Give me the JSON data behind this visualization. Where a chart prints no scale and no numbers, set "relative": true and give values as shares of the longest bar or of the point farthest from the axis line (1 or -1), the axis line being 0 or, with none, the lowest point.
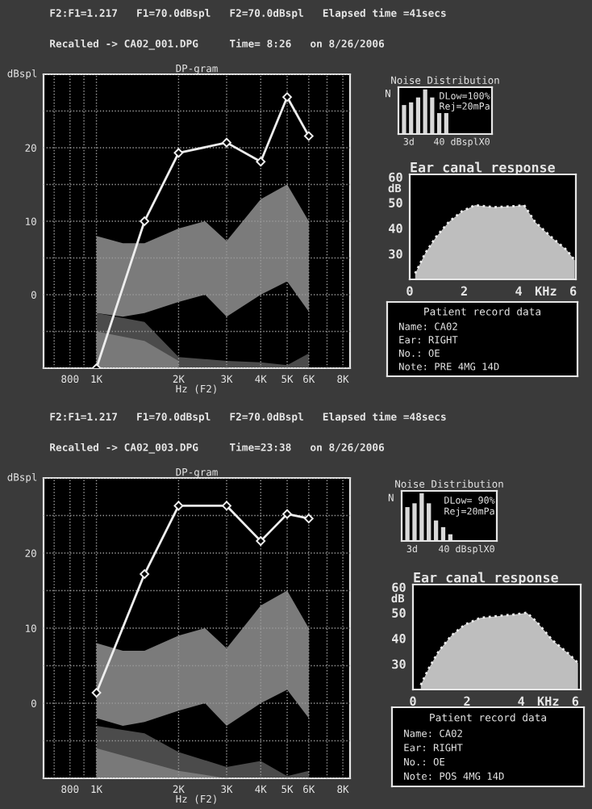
{
  "chart_data": [
    {
      "type": "line",
      "title": "DP-gram",
      "xlabel": "Hz (F2)",
      "ylabel": "dBspl",
      "log": "x",
      "grid": true,
      "annotations": [
        "F2:F1=1.217   F1=70.0dBspl   F2=70.0dBspl   Elapsed time =41secs",
        "Recalled -> CA02_001.DPG     Time= 8:26   on 8/26/2006"
      ],
      "xlim": [
        640,
        8500
      ],
      "xticks": [
        {
          "value": 700,
          "label": null
        },
        800,
        {
          "value": 900,
          "label": null
        },
        {
          "value": 1000,
          "label": "1K"
        },
        {
          "value": 2000,
          "label": "2K"
        },
        {
          "value": 3000,
          "label": "3K"
        },
        {
          "value": 4000,
          "label": "4K"
        },
        {
          "value": 5000,
          "label": "5K"
        },
        {
          "value": 6000,
          "label": "6K"
        },
        {
          "value": 7000,
          "label": null
        },
        {
          "value": 8000,
          "label": "8K"
        }
      ],
      "ylim": [
        -10,
        30
      ],
      "yticks": [
        {
          "value": -10,
          "label": null
        },
        {
          "value": -5,
          "label": null
        },
        0,
        {
          "value": 5,
          "label": null
        },
        10,
        {
          "value": 15,
          "label": null
        },
        20,
        {
          "value": 25,
          "label": null
        },
        {
          "value": 30,
          "label": null
        }
      ],
      "series": [
        {
          "type": "line",
          "color": "#9a9a9a",
          "x": [
            1000,
            1250,
            1500,
            2000,
            2500,
            3000,
            4000,
            5000,
            6000
          ],
          "values": [
            null,
            null,
            null,
            null,
            null,
            null,
            null,
            null,
            null
          ],
          "upper": [
            8,
            7,
            7,
            9,
            10,
            7.3,
            13,
            15,
            10
          ],
          "lower": [
            -2.5,
            -3,
            -2.5,
            -1,
            0,
            -3,
            0,
            1.8,
            -2.3
          ]
        },
        {
          "type": "line",
          "color": "#5e5e5e",
          "x": [
            1000,
            1500,
            2000,
            3000,
            4000,
            5000,
            6000
          ],
          "values": [
            null,
            null,
            null,
            null,
            null,
            null,
            null
          ],
          "upper": [
            -2.5,
            -3.7,
            -8.5,
            -9,
            -9.2,
            -9.6,
            -8
          ],
          "lower": [
            -10,
            -10,
            -10,
            -10,
            -10,
            -10,
            -10
          ]
        },
        {
          "type": "line",
          "color": "#858585",
          "x": [
            1000,
            1500,
            2000
          ],
          "values": [
            null,
            null,
            null
          ],
          "upper": [
            -5,
            -6.3,
            -9
          ],
          "lower": [
            -10,
            -10,
            -10
          ]
        },
        {
          "type": "line",
          "color": "#eeeeee",
          "marker": "diamond",
          "x": [
            1000,
            1500,
            2000,
            3000,
            4000,
            5000,
            6000
          ],
          "values": [
            -10,
            10,
            19.3,
            20.7,
            18.1,
            26.9,
            21.6
          ]
        }
      ]
    },
    {
      "type": "bar",
      "title": "Noise Distribution",
      "ylabel": "N",
      "relative": true,
      "tick_labels": false,
      "color": "#d8d8d8",
      "annotations": [
        "DLow=100%",
        "Rej=20mPa",
        "3d",
        "40 dBsplX0"
      ],
      "categories": [
        null,
        null,
        null,
        null,
        null,
        null,
        null
      ],
      "values": [
        0.65,
        0.71,
        0.82,
        1.0,
        0.82,
        0.47,
        0.47
      ]
    },
    {
      "type": "line",
      "title": "Ear canal response",
      "ylabel": "dB",
      "xlim": [
        0,
        6.1
      ],
      "xticks": [
        0,
        2,
        4,
        {
          "value": 5,
          "label": "KHz"
        },
        6
      ],
      "ylim": [
        20,
        61
      ],
      "yticks": [
        30,
        40,
        50,
        60
      ],
      "series": [
        {
          "type": "line",
          "color": "#eeeeee",
          "line_style": "dotted",
          "x": [
            0.2,
            0.58,
            0.96,
            1.44,
            1.92,
            2.4,
            3.07,
            3.85,
            4.2,
            4.6,
            5.2,
            5.77,
            6.06
          ],
          "values": [
            22.3,
            30.4,
            36.5,
            42.5,
            46.6,
            49,
            48.2,
            48.6,
            49,
            42.5,
            36.5,
            31.4,
            27.4
          ],
          "lower": [
            20,
            20,
            20,
            20,
            20,
            20,
            20,
            20,
            20,
            20,
            20,
            20,
            20
          ],
          "upper": [
            22.3,
            30.4,
            36.5,
            42.5,
            46.6,
            49,
            48.2,
            48.6,
            49,
            42.5,
            36.5,
            31.4,
            27.4
          ]
        }
      ]
    },
    {
      "type": "other",
      "title": "Patient record data",
      "annotations": [
        "Name: CA02",
        "Ear: RIGHT",
        "No.: OE",
        "Note: PRE 4MG 14D"
      ]
    },
    {
      "type": "line",
      "title": "DP-gram",
      "xlabel": "Hz (F2)",
      "ylabel": "dBspl",
      "log": "x",
      "grid": true,
      "annotations": [
        "F2:F1=1.217   F1=70.0dBspl   F2=70.0dBspl   Elapsed time =48secs",
        "Recalled -> CA02_003.DPG     Time=23:38   on 8/26/2006"
      ],
      "xlim": [
        640,
        8500
      ],
      "xticks": [
        {
          "value": 700,
          "label": null
        },
        800,
        {
          "value": 900,
          "label": null
        },
        {
          "value": 1000,
          "label": "1K"
        },
        {
          "value": 2000,
          "label": "2K"
        },
        {
          "value": 3000,
          "label": "3K"
        },
        {
          "value": 4000,
          "label": "4K"
        },
        {
          "value": 5000,
          "label": "5K"
        },
        {
          "value": 6000,
          "label": "6K"
        },
        {
          "value": 7000,
          "label": null
        },
        {
          "value": 8000,
          "label": "8K"
        }
      ],
      "ylim": [
        -10,
        30
      ],
      "yticks": [
        {
          "value": -10,
          "label": null
        },
        {
          "value": -5,
          "label": null
        },
        0,
        {
          "value": 5,
          "label": null
        },
        10,
        {
          "value": 15,
          "label": null
        },
        20,
        {
          "value": 25,
          "label": null
        },
        {
          "value": 30,
          "label": null
        }
      ],
      "series": [
        {
          "type": "line",
          "color": "#9a9a9a",
          "x": [
            1000,
            1250,
            1500,
            2000,
            2500,
            3000,
            4000,
            5000,
            6000
          ],
          "values": [
            null,
            null,
            null,
            null,
            null,
            null,
            null,
            null,
            null
          ],
          "upper": [
            8,
            7,
            7,
            9,
            10,
            7.3,
            13,
            15,
            10
          ],
          "lower": [
            -2,
            -3,
            -2.5,
            -1,
            0,
            -3,
            0,
            1.8,
            -2
          ]
        },
        {
          "type": "line",
          "color": "#5e5e5e",
          "x": [
            1000,
            1500,
            2000,
            3000,
            4000,
            5000,
            6000
          ],
          "values": [
            null,
            null,
            null,
            null,
            null,
            null,
            null
          ],
          "upper": [
            -3,
            -4,
            -6.5,
            -8.5,
            -7.7,
            -9.7,
            -9
          ],
          "lower": [
            -10,
            -10,
            -10,
            -10,
            -10,
            -10,
            -10
          ]
        },
        {
          "type": "line",
          "color": "#858585",
          "x": [
            1000,
            2000,
            3000
          ],
          "values": [
            null,
            null,
            null
          ],
          "upper": [
            -6,
            -9,
            -10
          ],
          "lower": [
            -10,
            -10,
            -10
          ]
        },
        {
          "type": "line",
          "color": "#eeeeee",
          "marker": "diamond",
          "x": [
            1000,
            1500,
            2000,
            3000,
            4000,
            5000,
            6000
          ],
          "values": [
            1.4,
            17.2,
            26.3,
            26.3,
            21.6,
            25.2,
            24.6
          ]
        }
      ]
    },
    {
      "type": "bar",
      "title": "Noise Distribution",
      "ylabel": "N",
      "relative": true,
      "tick_labels": false,
      "color": "#d8d8d8",
      "annotations": [
        "DLow= 90%",
        "Rej=20mPa",
        "3d",
        "40 dBsplX0"
      ],
      "categories": [
        null,
        null,
        null,
        null,
        null,
        null,
        null
      ],
      "values": [
        0.71,
        0.79,
        1.0,
        0.79,
        0.43,
        0.29,
        0.14
      ]
    },
    {
      "type": "line",
      "title": "Ear canal response",
      "ylabel": "dB",
      "xlim": [
        0,
        6.2
      ],
      "xticks": [
        0,
        2,
        4,
        {
          "value": 5,
          "label": "KHz"
        },
        6
      ],
      "ylim": [
        20,
        61
      ],
      "yticks": [
        30,
        40,
        50,
        60
      ],
      "series": [
        {
          "type": "line",
          "color": "#eeeeee",
          "line_style": "dotted",
          "x": [
            0.29,
            0.57,
            0.96,
            1.43,
            1.91,
            2.49,
            3.25,
            3.82,
            4.21,
            4.59,
            5.16,
            5.74,
            6.1
          ],
          "values": [
            21.8,
            28,
            35.1,
            41.2,
            45.3,
            48,
            48.8,
            49.4,
            50,
            46.3,
            39.2,
            34.1,
            30.4
          ],
          "lower": [
            20,
            20,
            20,
            20,
            20,
            20,
            20,
            20,
            20,
            20,
            20,
            20,
            20
          ],
          "upper": [
            21.8,
            28,
            35.1,
            41.2,
            45.3,
            48,
            48.8,
            49.4,
            50,
            46.3,
            39.2,
            34.1,
            30.4
          ]
        }
      ]
    },
    {
      "type": "other",
      "title": "Patient record data",
      "annotations": [
        "Name: CA02",
        "Ear: RIGHT",
        "No.: OE",
        "Note: POS 4MG 14D"
      ]
    }
  ]
}
